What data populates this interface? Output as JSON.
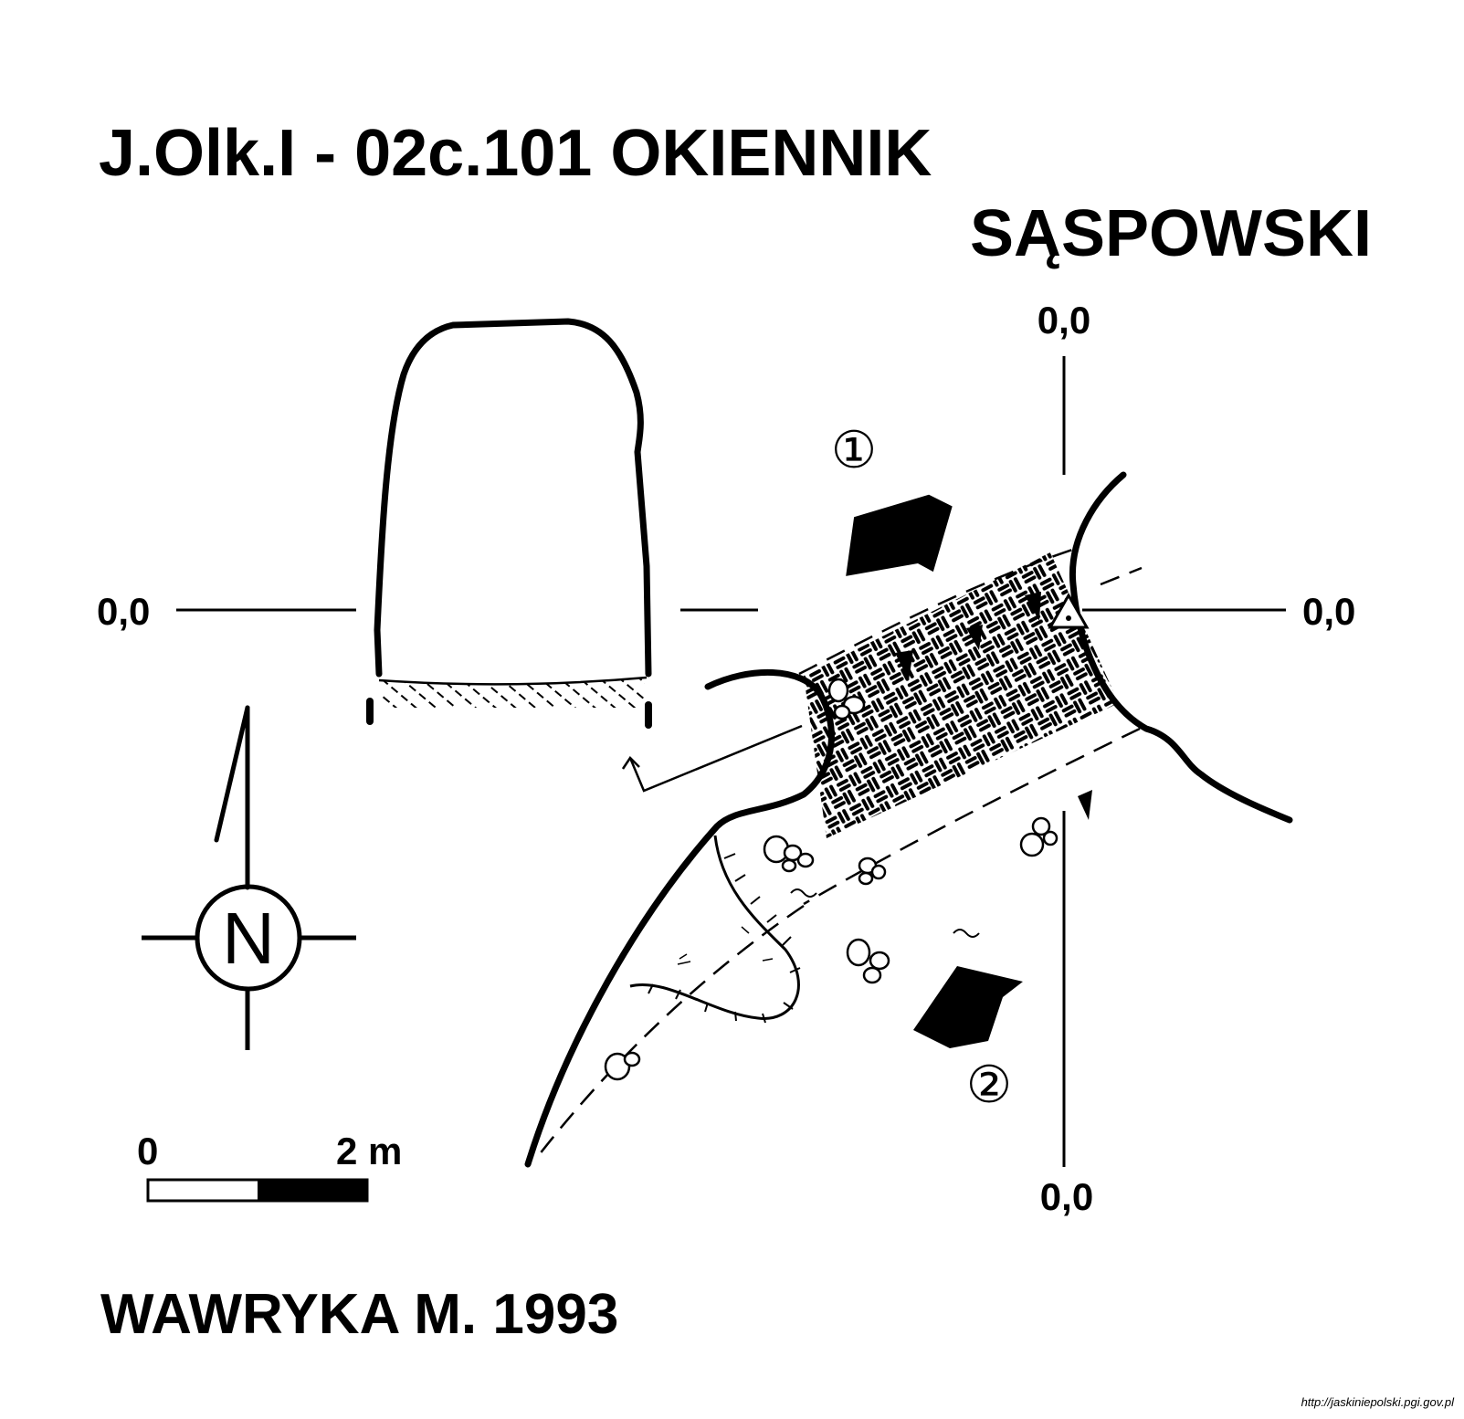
{
  "title": {
    "line1": "J.Olk.I - 02c.101  OKIENNIK",
    "line2": "SĄSPOWSKI"
  },
  "section_labels": {
    "left": "0,0",
    "right": "0,0",
    "top": "0,0",
    "bottom": "0,0"
  },
  "markers": {
    "view1": "①",
    "view2": "②"
  },
  "compass": {
    "letter": "N"
  },
  "scale_bar": {
    "start": "0",
    "end": "2 m"
  },
  "author": "WAWRYKA M. 1993",
  "source_url": "http://jaskiniepolski.pgi.gov.pl",
  "colors": {
    "ink": "#000000",
    "paper": "#ffffff"
  }
}
